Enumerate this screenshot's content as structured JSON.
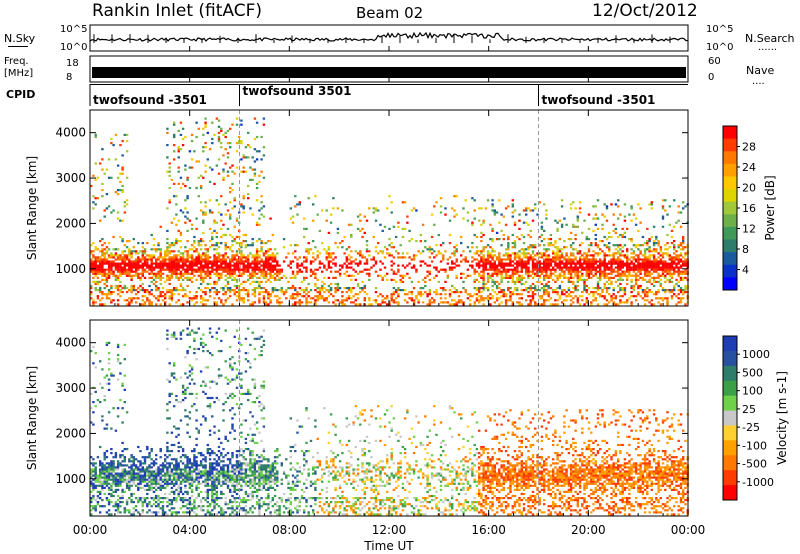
{
  "header": {
    "title": "Rankin Inlet (fitACF)",
    "beam": "Beam 02",
    "date": "12/Oct/2012"
  },
  "status_panels": {
    "nsky_label": "N.Sky",
    "nsky_ticks": [
      "10^5",
      "10^0"
    ],
    "nsearch_label": "N.Search",
    "nsearch_ticks": [
      "10^5",
      "10^0"
    ],
    "freq_label_1": "Freq.",
    "freq_label_2": "[MHz]",
    "freq_ticks": [
      "18",
      "8"
    ],
    "nave_label": "Nave",
    "nave_ticks": [
      "60",
      "0"
    ],
    "cpid_label": "CPID",
    "cpid_segments": [
      {
        "label": "twofsound -3501",
        "start_hour": 0.0
      },
      {
        "label": "twofsound 3501",
        "start_hour": 6.0
      },
      {
        "label": "twofsound -3501",
        "start_hour": 18.0
      }
    ]
  },
  "chart_data": [
    {
      "type": "heatmap",
      "name": "power",
      "ylabel": "Slant Range [km]",
      "yticks": [
        "4000",
        "3000",
        "2000",
        "1000"
      ],
      "ylim": [
        180,
        4500
      ],
      "colorbar_label": "Power [dB]",
      "colorbar_ticks": [
        "28",
        "24",
        "20",
        "16",
        "12",
        "8",
        "4"
      ],
      "colorbar_colors": [
        "#ff0000",
        "#ff3c00",
        "#ff7800",
        "#ffa000",
        "#ffc800",
        "#ddd400",
        "#a0c838",
        "#6db04a",
        "#3f9a5a",
        "#2e7d6a",
        "#1a5a9e",
        "#0a32c8",
        "#0000ff"
      ]
    },
    {
      "type": "heatmap",
      "name": "velocity",
      "ylabel": "Slant Range [km]",
      "yticks": [
        "4000",
        "3000",
        "2000",
        "1000"
      ],
      "ylim": [
        180,
        4500
      ],
      "colorbar_label": "Velocity [m s-1]",
      "colorbar_ticks": [
        "1000",
        "500",
        "100",
        "25",
        "-25",
        "-100",
        "-500",
        "-1000"
      ],
      "colorbar_colors": [
        "#1e3cb4",
        "#2850a0",
        "#2e7d6a",
        "#3aa048",
        "#6fd04a",
        "#c8c8c8",
        "#ffd030",
        "#ffa000",
        "#ff7800",
        "#ff3c00",
        "#ff0000"
      ]
    }
  ],
  "time_axis": {
    "xlabel": "Time UT",
    "xticks": [
      "00:00",
      "04:00",
      "08:00",
      "12:00",
      "16:00",
      "20:00",
      "00:00"
    ],
    "xlim": [
      0,
      24
    ]
  }
}
